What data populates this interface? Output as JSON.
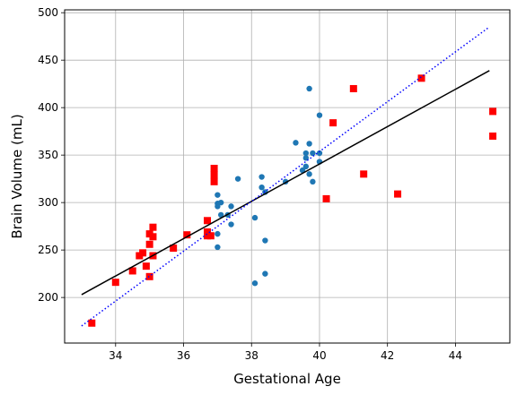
{
  "chart_data": {
    "type": "scatter",
    "title": "",
    "xlabel": "Gestational Age",
    "ylabel": "Brain Volume (mL)",
    "xlim": [
      32.5,
      45.6
    ],
    "ylim": [
      152,
      503
    ],
    "xticks": [
      34,
      36,
      38,
      40,
      42,
      44
    ],
    "yticks": [
      200,
      250,
      300,
      350,
      400,
      450,
      500
    ],
    "grid": true,
    "legend": "none",
    "series": [
      {
        "marker": "circle",
        "color": "#1f77b4",
        "points": [
          [
            37.0,
            308
          ],
          [
            37.0,
            299
          ],
          [
            37.0,
            296
          ],
          [
            37.1,
            300
          ],
          [
            37.1,
            287
          ],
          [
            37.3,
            287
          ],
          [
            37.4,
            296
          ],
          [
            37.4,
            277
          ],
          [
            37.6,
            325
          ],
          [
            37.0,
            267
          ],
          [
            37.0,
            253
          ],
          [
            38.1,
            284
          ],
          [
            38.1,
            215
          ],
          [
            38.3,
            327
          ],
          [
            38.3,
            316
          ],
          [
            38.4,
            311
          ],
          [
            38.4,
            260
          ],
          [
            38.4,
            225
          ],
          [
            39.0,
            322
          ],
          [
            39.3,
            363
          ],
          [
            39.5,
            334
          ],
          [
            39.6,
            338
          ],
          [
            39.6,
            352
          ],
          [
            39.6,
            347
          ],
          [
            39.7,
            362
          ],
          [
            39.7,
            420
          ],
          [
            39.7,
            330
          ],
          [
            39.8,
            322
          ],
          [
            39.8,
            352
          ],
          [
            40.0,
            392
          ],
          [
            40.0,
            352
          ],
          [
            40.0,
            343
          ]
        ]
      },
      {
        "marker": "square",
        "color": "#ff0000",
        "points": [
          [
            33.3,
            173
          ],
          [
            34.0,
            216
          ],
          [
            34.5,
            228
          ],
          [
            34.7,
            244
          ],
          [
            34.8,
            247
          ],
          [
            34.9,
            233
          ],
          [
            35.0,
            267
          ],
          [
            35.0,
            256
          ],
          [
            35.0,
            222
          ],
          [
            35.1,
            274
          ],
          [
            35.1,
            264
          ],
          [
            35.1,
            244
          ],
          [
            35.7,
            252
          ],
          [
            36.1,
            266
          ],
          [
            36.7,
            281
          ],
          [
            36.7,
            269
          ],
          [
            36.7,
            265
          ],
          [
            36.8,
            265
          ],
          [
            36.9,
            336
          ],
          [
            36.9,
            329
          ],
          [
            36.9,
            322
          ],
          [
            40.2,
            304
          ],
          [
            40.4,
            384
          ],
          [
            41.0,
            420
          ],
          [
            41.3,
            330
          ],
          [
            42.3,
            309
          ],
          [
            43.0,
            431
          ],
          [
            45.1,
            396
          ],
          [
            45.1,
            370
          ]
        ]
      }
    ],
    "lines": [
      {
        "style": "solid",
        "color": "#000000",
        "x": [
          33.0,
          45.0
        ],
        "y": [
          203,
          439
        ]
      },
      {
        "style": "dotted",
        "color": "#0000ff",
        "x": [
          33.0,
          45.0
        ],
        "y": [
          170,
          485
        ]
      }
    ]
  }
}
